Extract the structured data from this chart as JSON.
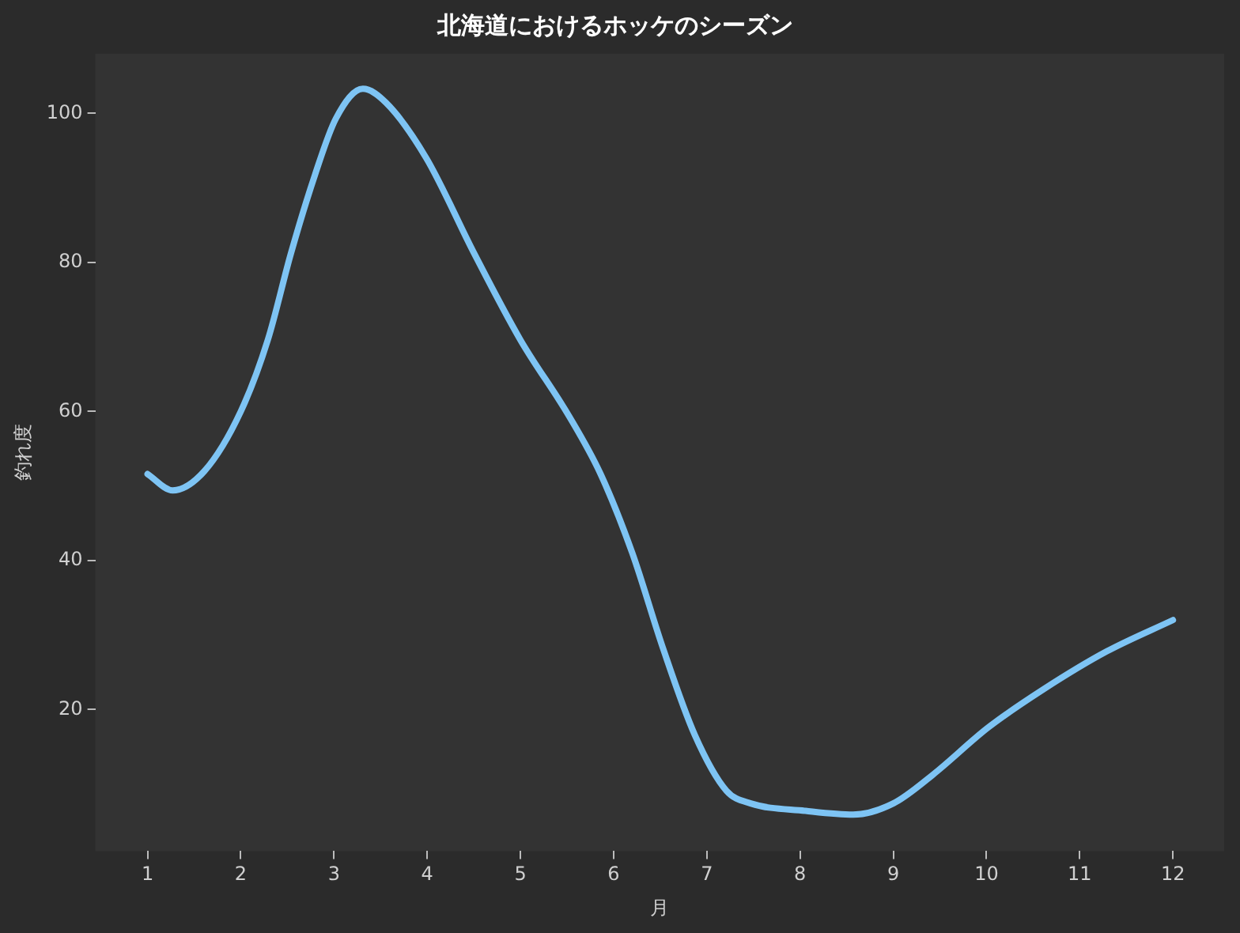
{
  "chart_data": {
    "type": "line",
    "title": "北海道におけるホッケのシーズン",
    "xlabel": "月",
    "ylabel": "釣れ度",
    "x": [
      1,
      1.27,
      1.61,
      2,
      2.29,
      2.54,
      2.8,
      3.02,
      3.31,
      3.56,
      3.99,
      4.5,
      5,
      5.52,
      5.86,
      6.2,
      6.53,
      6.87,
      7.21,
      7.47,
      8.06,
      8.57,
      9,
      9.42,
      10.02,
      10.61,
      11.29,
      12
    ],
    "values": [
      51.6,
      49.4,
      52,
      60,
      69.6,
      81.3,
      91.9,
      99.3,
      103.3,
      101.4,
      94,
      81.3,
      69.6,
      59.4,
      51.6,
      41,
      28.2,
      16.6,
      9.1,
      7.4,
      6.4,
      5.9,
      7.4,
      11.2,
      17.6,
      22.7,
      27.8,
      32
    ],
    "color": "#7ec4f4",
    "xlim": [
      0.44,
      12.55
    ],
    "xticks": [
      1,
      2,
      3,
      4,
      5,
      6,
      7,
      8,
      9,
      10,
      11,
      12
    ],
    "ylim": [
      1,
      108
    ],
    "yticks": [
      20,
      40,
      60,
      80,
      100
    ]
  }
}
